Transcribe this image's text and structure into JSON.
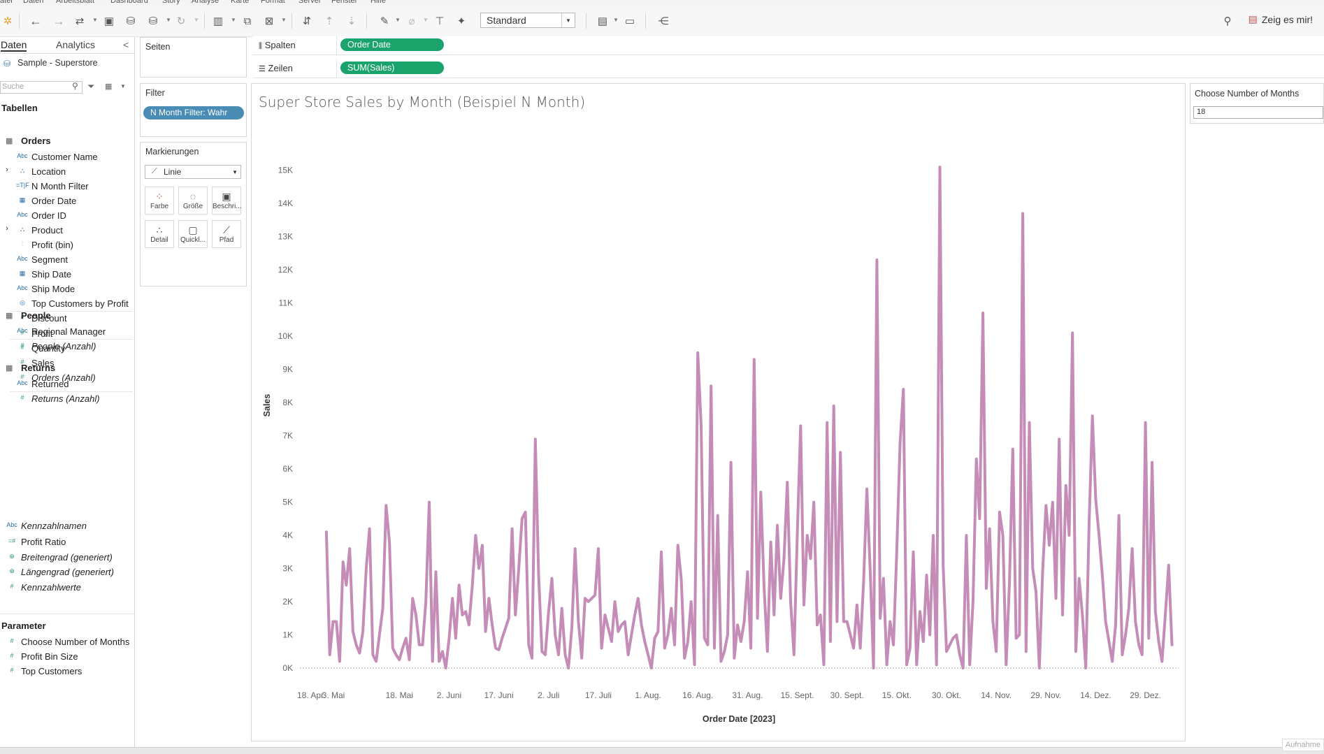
{
  "menu": [
    "atei",
    "Daten",
    "Arbeitsblatt",
    "Dashboard",
    "Story",
    "Analyse",
    "Karte",
    "Format",
    "Server",
    "Fenster",
    "Hilfe"
  ],
  "toolbar": {
    "view_select": "Standard",
    "show_me": "Zeig es mir!"
  },
  "data_pane": {
    "tabs": [
      "Daten",
      "Analytics"
    ],
    "collapse": "<",
    "data_source": "Sample - Superstore",
    "search_placeholder": "Suche",
    "tables_header": "Tabellen",
    "tables": [
      {
        "name": "Orders",
        "fields": [
          {
            "type": "Abc",
            "label": "Customer Name"
          },
          {
            "type": "geo",
            "label": "Location"
          },
          {
            "type": "=T|F",
            "label": "N Month Filter"
          },
          {
            "type": "date",
            "label": "Order Date"
          },
          {
            "type": "Abc",
            "label": "Order ID"
          },
          {
            "type": "geo",
            "label": "Product"
          },
          {
            "type": "bin",
            "label": "Profit (bin)"
          },
          {
            "type": "Abc",
            "label": "Segment"
          },
          {
            "type": "date",
            "label": "Ship Date"
          },
          {
            "type": "Abc",
            "label": "Ship Mode"
          },
          {
            "type": "set",
            "label": "Top Customers by Profit"
          },
          {
            "type": "#",
            "label": "Discount"
          },
          {
            "type": "#",
            "label": "Profit"
          },
          {
            "type": "#",
            "label": "Quantity"
          },
          {
            "type": "#",
            "label": "Sales"
          },
          {
            "type": "#",
            "label": "Orders (Anzahl)"
          }
        ]
      },
      {
        "name": "People",
        "fields": [
          {
            "type": "Abc",
            "label": "Regional Manager"
          },
          {
            "type": "#",
            "label": "People (Anzahl)"
          }
        ]
      },
      {
        "name": "Returns",
        "fields": [
          {
            "type": "Abc",
            "label": "Returned"
          },
          {
            "type": "#",
            "label": "Returns (Anzahl)"
          }
        ]
      }
    ],
    "extra_fields": [
      {
        "type": "Abc",
        "label": "Kennzahlnamen"
      },
      {
        "type": "=#",
        "label": "Profit Ratio"
      },
      {
        "type": "globe",
        "label": "Breitengrad (generiert)"
      },
      {
        "type": "globe",
        "label": "Längengrad (generiert)"
      },
      {
        "type": "#",
        "label": "Kennzahlwerte"
      }
    ],
    "parameters_header": "Parameter",
    "parameters": [
      "Choose Number of Months",
      "Profit Bin Size",
      "Top Customers"
    ]
  },
  "cards": {
    "pages_title": "Seiten",
    "filter_title": "Filter",
    "filter_pill": "N Month Filter: Wahr",
    "marks_title": "Markierungen",
    "marks_type": "Linie",
    "mark_buttons": [
      "Farbe",
      "Größe",
      "Beschri...",
      "Detail",
      "Quickl...",
      "Pfad"
    ]
  },
  "shelves": {
    "columns_label": "Spalten",
    "columns_pill": "Order Date",
    "rows_label": "Zeilen",
    "rows_pill": "SUM(Sales)"
  },
  "parameter_card": {
    "title": "Choose Number of Months",
    "value": "18"
  },
  "recording_label": "Aufnahme",
  "chart_data": {
    "type": "line",
    "title": "Super Store Sales by Month (Beispiel N Month)",
    "xlabel": "Order Date [2023]",
    "ylabel": "Sales",
    "x_tick_labels": [
      "18. Apr.",
      "3. Mai",
      "18. Mai",
      "2. Juni",
      "17. Juni",
      "2. Juli",
      "17. Juli",
      "1. Aug.",
      "16. Aug.",
      "31. Aug.",
      "15. Sept.",
      "30. Sept.",
      "15. Okt.",
      "30. Okt.",
      "14. Nov.",
      "29. Nov.",
      "14. Dez.",
      "29. Dez."
    ],
    "y_tick_labels": [
      "0K",
      "1K",
      "2K",
      "3K",
      "4K",
      "5K",
      "6K",
      "7K",
      "8K",
      "9K",
      "10K",
      "11K",
      "12K",
      "13K",
      "14K",
      "15K"
    ],
    "ylim": [
      0,
      15500
    ],
    "xlim_days": [
      0,
      265
    ],
    "color": "#c48cb6",
    "series": [
      {
        "points": [
          [
            8,
            4100
          ],
          [
            9,
            400
          ],
          [
            10,
            1400
          ],
          [
            11,
            1400
          ],
          [
            12,
            200
          ],
          [
            13,
            3200
          ],
          [
            14,
            2500
          ],
          [
            15,
            3600
          ],
          [
            16,
            1100
          ],
          [
            17,
            700
          ],
          [
            18,
            450
          ],
          [
            19,
            1100
          ],
          [
            20,
            3000
          ],
          [
            21,
            4200
          ],
          [
            22,
            400
          ],
          [
            23,
            200
          ],
          [
            24,
            1000
          ],
          [
            25,
            1800
          ],
          [
            26,
            4900
          ],
          [
            27,
            3800
          ],
          [
            28,
            600
          ],
          [
            29,
            400
          ],
          [
            30,
            250
          ],
          [
            31,
            600
          ],
          [
            32,
            900
          ],
          [
            33,
            250
          ],
          [
            34,
            2100
          ],
          [
            35,
            1600
          ],
          [
            36,
            700
          ],
          [
            37,
            700
          ],
          [
            38,
            2000
          ],
          [
            39,
            5000
          ],
          [
            40,
            200
          ],
          [
            41,
            2900
          ],
          [
            42,
            200
          ],
          [
            43,
            500
          ],
          [
            44,
            0
          ],
          [
            45,
            900
          ],
          [
            46,
            2100
          ],
          [
            47,
            900
          ],
          [
            48,
            2500
          ],
          [
            49,
            1600
          ],
          [
            50,
            1700
          ],
          [
            51,
            1300
          ],
          [
            52,
            2500
          ],
          [
            53,
            4000
          ],
          [
            54,
            3000
          ],
          [
            55,
            3700
          ],
          [
            56,
            1100
          ],
          [
            57,
            2100
          ],
          [
            58,
            1300
          ],
          [
            59,
            600
          ],
          [
            60,
            550
          ],
          [
            61,
            900
          ],
          [
            62,
            1200
          ],
          [
            63,
            1500
          ],
          [
            64,
            4200
          ],
          [
            65,
            1600
          ],
          [
            66,
            3000
          ],
          [
            67,
            4500
          ],
          [
            68,
            4700
          ],
          [
            69,
            700
          ],
          [
            70,
            300
          ],
          [
            71,
            6900
          ],
          [
            72,
            2800
          ],
          [
            73,
            500
          ],
          [
            74,
            400
          ],
          [
            75,
            1700
          ],
          [
            76,
            2700
          ],
          [
            77,
            1000
          ],
          [
            78,
            400
          ],
          [
            79,
            1800
          ],
          [
            80,
            400
          ],
          [
            81,
            0
          ],
          [
            82,
            1200
          ],
          [
            83,
            3600
          ],
          [
            84,
            1400
          ],
          [
            85,
            300
          ],
          [
            86,
            2100
          ],
          [
            87,
            2000
          ],
          [
            88,
            2100
          ],
          [
            89,
            2200
          ],
          [
            90,
            3600
          ],
          [
            91,
            600
          ],
          [
            92,
            1600
          ],
          [
            93,
            1200
          ],
          [
            94,
            800
          ],
          [
            95,
            2000
          ],
          [
            96,
            1100
          ],
          [
            97,
            1300
          ],
          [
            98,
            1400
          ],
          [
            99,
            400
          ],
          [
            100,
            1000
          ],
          [
            101,
            1600
          ],
          [
            102,
            2100
          ],
          [
            103,
            1300
          ],
          [
            104,
            800
          ],
          [
            105,
            400
          ],
          [
            106,
            0
          ],
          [
            107,
            900
          ],
          [
            108,
            1100
          ],
          [
            109,
            3500
          ],
          [
            110,
            600
          ],
          [
            111,
            1000
          ],
          [
            112,
            1800
          ],
          [
            113,
            700
          ],
          [
            114,
            3700
          ],
          [
            115,
            2700
          ],
          [
            116,
            300
          ],
          [
            117,
            800
          ],
          [
            118,
            2000
          ],
          [
            119,
            100
          ],
          [
            120,
            9500
          ],
          [
            121,
            7300
          ],
          [
            122,
            900
          ],
          [
            123,
            700
          ],
          [
            124,
            8500
          ],
          [
            125,
            600
          ],
          [
            126,
            4600
          ],
          [
            127,
            200
          ],
          [
            128,
            500
          ],
          [
            129,
            1000
          ],
          [
            130,
            6200
          ],
          [
            131,
            300
          ],
          [
            132,
            1300
          ],
          [
            133,
            800
          ],
          [
            134,
            1400
          ],
          [
            135,
            2900
          ],
          [
            136,
            600
          ],
          [
            137,
            9300
          ],
          [
            138,
            1500
          ],
          [
            139,
            5300
          ],
          [
            140,
            2400
          ],
          [
            141,
            500
          ],
          [
            142,
            3800
          ],
          [
            143,
            1600
          ],
          [
            144,
            4300
          ],
          [
            145,
            2100
          ],
          [
            146,
            3300
          ],
          [
            147,
            5600
          ],
          [
            148,
            2000
          ],
          [
            149,
            400
          ],
          [
            150,
            4000
          ],
          [
            151,
            7300
          ],
          [
            152,
            1900
          ],
          [
            153,
            4000
          ],
          [
            154,
            3300
          ],
          [
            155,
            5000
          ],
          [
            156,
            1300
          ],
          [
            157,
            1600
          ],
          [
            158,
            100
          ],
          [
            159,
            7400
          ],
          [
            160,
            800
          ],
          [
            161,
            7900
          ],
          [
            162,
            1400
          ],
          [
            163,
            6500
          ],
          [
            164,
            1400
          ],
          [
            165,
            1400
          ],
          [
            166,
            1000
          ],
          [
            167,
            600
          ],
          [
            168,
            1900
          ],
          [
            169,
            600
          ],
          [
            170,
            2600
          ],
          [
            171,
            5400
          ],
          [
            172,
            2900
          ],
          [
            173,
            0
          ],
          [
            174,
            12300
          ],
          [
            175,
            1500
          ],
          [
            176,
            2700
          ],
          [
            177,
            100
          ],
          [
            178,
            1400
          ],
          [
            179,
            700
          ],
          [
            180,
            3500
          ],
          [
            181,
            6800
          ],
          [
            182,
            8400
          ],
          [
            183,
            100
          ],
          [
            184,
            600
          ],
          [
            185,
            3500
          ],
          [
            186,
            100
          ],
          [
            187,
            1700
          ],
          [
            188,
            800
          ],
          [
            189,
            2800
          ],
          [
            190,
            1000
          ],
          [
            191,
            4000
          ],
          [
            192,
            100
          ],
          [
            193,
            15100
          ],
          [
            194,
            3100
          ],
          [
            195,
            500
          ],
          [
            196,
            700
          ],
          [
            197,
            900
          ],
          [
            198,
            1000
          ],
          [
            199,
            400
          ],
          [
            200,
            0
          ],
          [
            201,
            4000
          ],
          [
            202,
            100
          ],
          [
            203,
            2000
          ],
          [
            204,
            6300
          ],
          [
            205,
            4500
          ],
          [
            206,
            10700
          ],
          [
            207,
            2400
          ],
          [
            208,
            4200
          ],
          [
            209,
            1400
          ],
          [
            210,
            500
          ],
          [
            211,
            4700
          ],
          [
            212,
            4000
          ],
          [
            213,
            100
          ],
          [
            214,
            2600
          ],
          [
            215,
            6600
          ],
          [
            216,
            900
          ],
          [
            217,
            1000
          ],
          [
            218,
            13700
          ],
          [
            219,
            500
          ],
          [
            220,
            7400
          ],
          [
            221,
            3000
          ],
          [
            222,
            2300
          ],
          [
            223,
            0
          ],
          [
            224,
            2900
          ],
          [
            225,
            4900
          ],
          [
            226,
            3700
          ],
          [
            227,
            5000
          ],
          [
            228,
            2100
          ],
          [
            229,
            6900
          ],
          [
            230,
            1600
          ],
          [
            231,
            5500
          ],
          [
            232,
            4000
          ],
          [
            233,
            10100
          ],
          [
            234,
            500
          ],
          [
            235,
            2700
          ],
          [
            236,
            1600
          ],
          [
            237,
            0
          ],
          [
            238,
            4300
          ],
          [
            239,
            7600
          ],
          [
            240,
            5100
          ],
          [
            241,
            4000
          ],
          [
            242,
            2800
          ],
          [
            243,
            1400
          ],
          [
            244,
            800
          ],
          [
            245,
            200
          ],
          [
            246,
            1300
          ],
          [
            247,
            4600
          ],
          [
            248,
            400
          ],
          [
            249,
            1000
          ],
          [
            250,
            1800
          ],
          [
            251,
            3600
          ],
          [
            252,
            1400
          ],
          [
            253,
            700
          ],
          [
            254,
            400
          ],
          [
            255,
            7400
          ],
          [
            256,
            900
          ],
          [
            257,
            6200
          ],
          [
            258,
            1700
          ],
          [
            259,
            800
          ],
          [
            260,
            200
          ],
          [
            261,
            1600
          ],
          [
            262,
            3100
          ],
          [
            263,
            700
          ]
        ]
      }
    ]
  }
}
